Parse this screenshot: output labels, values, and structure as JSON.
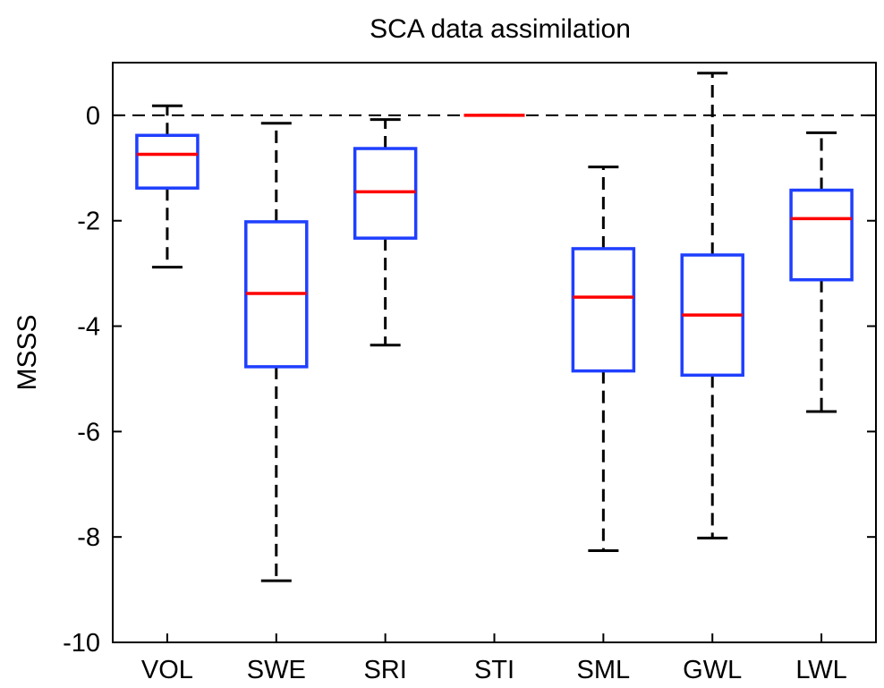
{
  "chart_data": {
    "type": "box",
    "title": "SCA data assimilation",
    "xlabel": "",
    "ylabel": "MSSS",
    "ylim": [
      -10,
      1
    ],
    "yticks": [
      0,
      -2,
      -4,
      -6,
      -8,
      -10
    ],
    "grid": false,
    "reference_line": 0,
    "colors": {
      "box": "#1f3fff",
      "median": "#ff0000",
      "whisker": "#000000",
      "reference": "#000000"
    },
    "categories": [
      "VOL",
      "SWE",
      "SRI",
      "STI",
      "SML",
      "GWL",
      "LWL"
    ],
    "boxes": [
      {
        "category": "VOL",
        "whisker_low": -2.88,
        "q1": -1.38,
        "median": -0.74,
        "q3": -0.38,
        "whisker_high": 0.18
      },
      {
        "category": "SWE",
        "whisker_low": -8.83,
        "q1": -4.77,
        "median": -3.38,
        "q3": -2.02,
        "whisker_high": -0.15
      },
      {
        "category": "SRI",
        "whisker_low": -4.36,
        "q1": -2.33,
        "median": -1.45,
        "q3": -0.63,
        "whisker_high": -0.08
      },
      {
        "category": "STI",
        "whisker_low": 0.0,
        "q1": 0.0,
        "median": 0.0,
        "q3": 0.0,
        "whisker_high": 0.0
      },
      {
        "category": "SML",
        "whisker_low": -8.26,
        "q1": -4.85,
        "median": -3.45,
        "q3": -2.53,
        "whisker_high": -0.98
      },
      {
        "category": "GWL",
        "whisker_low": -8.02,
        "q1": -4.93,
        "median": -3.79,
        "q3": -2.65,
        "whisker_high": 0.8
      },
      {
        "category": "LWL",
        "whisker_low": -5.62,
        "q1": -3.12,
        "median": -1.96,
        "q3": -1.42,
        "whisker_high": -0.33
      }
    ]
  }
}
